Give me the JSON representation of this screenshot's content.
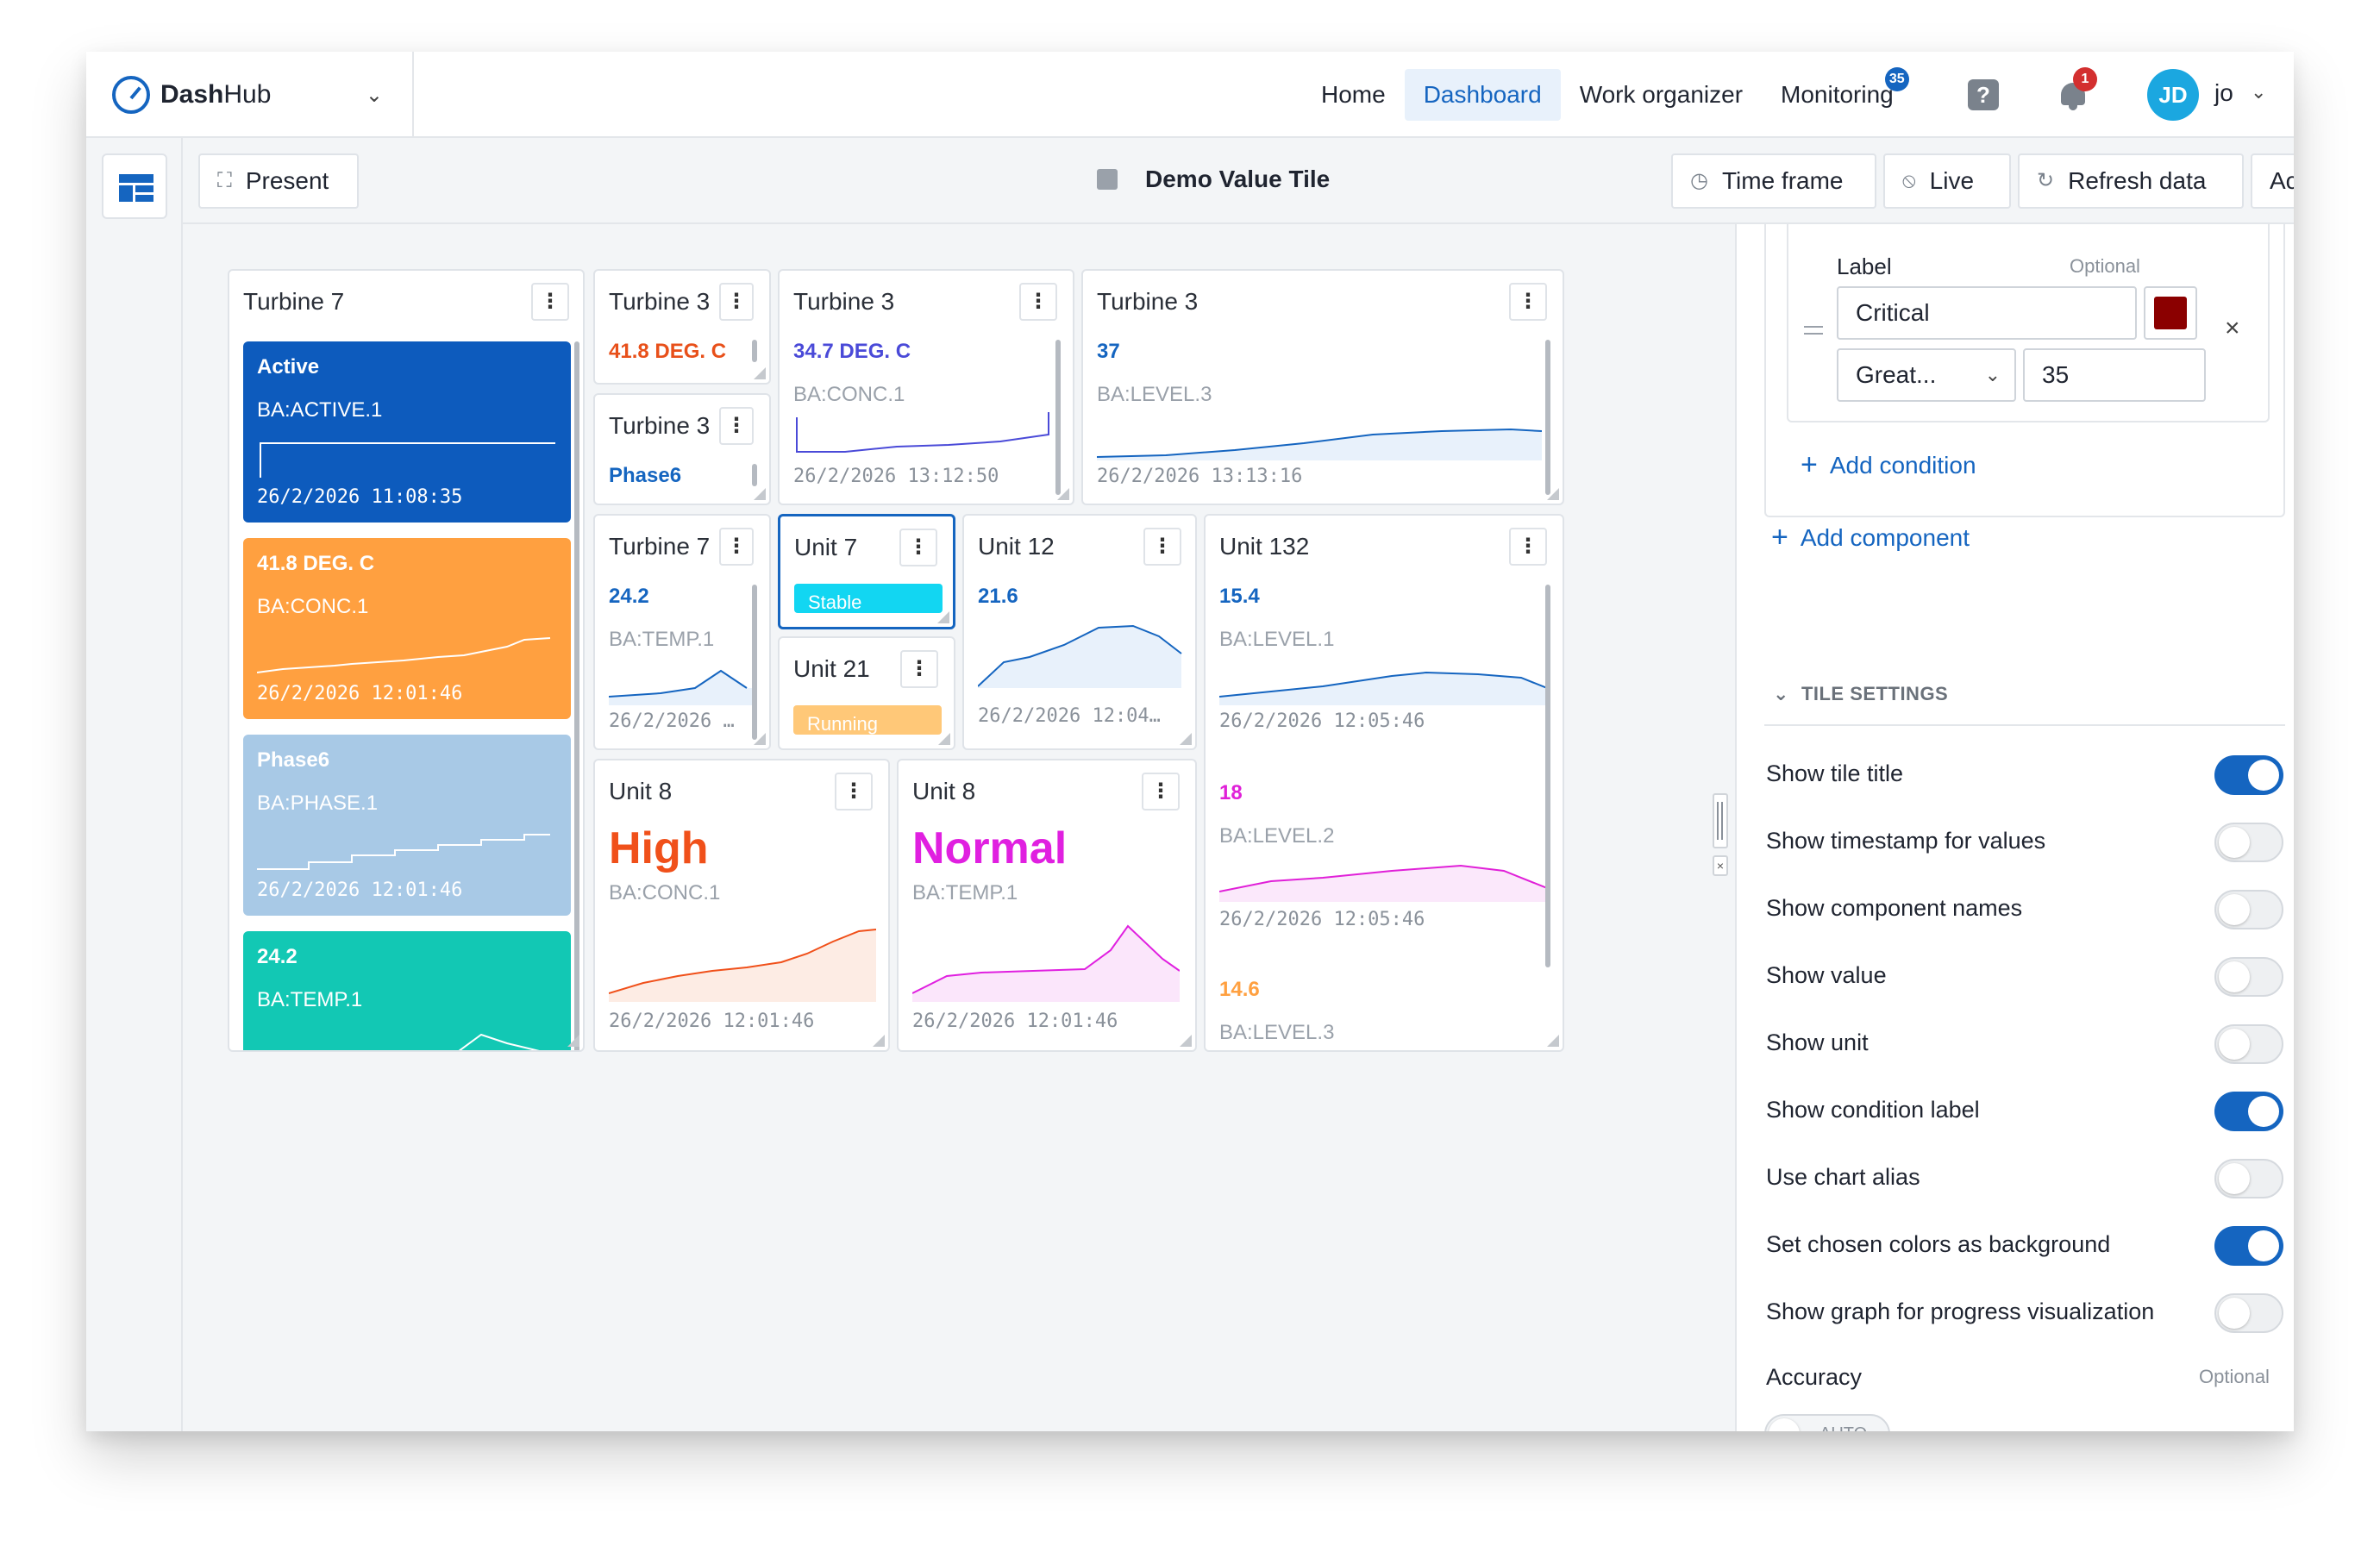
{
  "app": {
    "brand_bold": "Dash",
    "brand_light": "Hub"
  },
  "nav": {
    "items": [
      {
        "label": "Home",
        "active": false
      },
      {
        "label": "Dashboard",
        "active": true
      },
      {
        "label": "Work organizer",
        "active": false
      },
      {
        "label": "Monitoring",
        "active": false,
        "badge": "35"
      }
    ],
    "notifications_badge": "1",
    "user_initials": "JD",
    "user_name": "jo"
  },
  "toolbar": {
    "present_label": "Present",
    "title": "Demo Value Tile",
    "time_frame_label": "Time frame",
    "live_label": "Live",
    "refresh_label": "Refresh data",
    "actions_label": "Actions"
  },
  "tiles": {
    "t7": {
      "title": "Turbine 7",
      "blocks": [
        {
          "value": "Active",
          "tag": "BA:ACTIVE.1",
          "ts": "26/2/2026 11:08:35",
          "color": "#0d5bbd"
        },
        {
          "value": "41.8 DEG. C",
          "tag": "BA:CONC.1",
          "ts": "26/2/2026 12:01:46",
          "color": "#ffa040"
        },
        {
          "value": "Phase6",
          "tag": "BA:PHASE.1",
          "ts": "26/2/2026 12:01:46",
          "color": "#a8c9e6"
        },
        {
          "value": "24.2",
          "tag": "BA:TEMP.1",
          "ts": "",
          "color": "#12c8b4"
        }
      ]
    },
    "t3a": {
      "title": "Turbine 3",
      "value": "41.8 DEG. C",
      "color": "#e8501a"
    },
    "t3b": {
      "title": "Turbine 3",
      "value": "Phase6",
      "color": "#1565c0"
    },
    "t3c": {
      "title": "Turbine 3",
      "value": "34.7 DEG. C",
      "tag": "BA:CONC.1",
      "ts": "26/2/2026 13:12:50",
      "color": "#4a4ad8"
    },
    "t3d": {
      "title": "Turbine 3",
      "value": "37",
      "tag": "BA:LEVEL.3",
      "ts": "26/2/2026 13:13:16",
      "color": "#1565c0"
    },
    "t7b": {
      "title": "Turbine 7",
      "value": "24.2",
      "tag": "BA:TEMP.1",
      "ts": "26/2/2026 …",
      "color": "#1565c0"
    },
    "u7": {
      "title": "Unit 7",
      "pill": "Stable",
      "color": "#12d6f2"
    },
    "u21": {
      "title": "Unit 21",
      "pill": "Running",
      "color": "#ffc878"
    },
    "u12": {
      "title": "Unit 12",
      "value": "21.6",
      "ts": "26/2/2026 12:04…",
      "color": "#1565c0"
    },
    "u132": {
      "title": "Unit 132",
      "rows": [
        {
          "value": "15.4",
          "tag": "BA:LEVEL.1",
          "ts": "26/2/2026 12:05:46",
          "color": "#1565c0"
        },
        {
          "value": "18",
          "tag": "BA:LEVEL.2",
          "ts": "26/2/2026 12:05:46",
          "color": "#e020d8"
        },
        {
          "value": "14.6",
          "tag": "BA:LEVEL.3",
          "ts": "",
          "color": "#ffa040"
        }
      ]
    },
    "u8a": {
      "title": "Unit 8",
      "value": "High",
      "tag": "BA:CONC.1",
      "ts": "26/2/2026 12:01:46",
      "color": "#f0501a"
    },
    "u8b": {
      "title": "Unit 8",
      "value": "Normal",
      "tag": "BA:TEMP.1",
      "ts": "26/2/2026 12:01:46",
      "color": "#e020e0"
    }
  },
  "panel": {
    "label_title": "Label",
    "optional": "Optional",
    "label_value": "Critical",
    "swatch_color": "#8b0000",
    "operator": "Great...",
    "threshold": "35",
    "add_condition": "Add condition",
    "add_component": "Add component",
    "section": "TILE SETTINGS",
    "settings": [
      {
        "label": "Show tile title",
        "on": true
      },
      {
        "label": "Show timestamp for values",
        "on": false
      },
      {
        "label": "Show component names",
        "on": false
      },
      {
        "label": "Show value",
        "on": false
      },
      {
        "label": "Show unit",
        "on": false
      },
      {
        "label": "Show condition label",
        "on": true
      },
      {
        "label": "Use chart alias",
        "on": false
      },
      {
        "label": "Set chosen colors as background",
        "on": true
      },
      {
        "label": "Show graph for progress visualization",
        "on": false
      }
    ],
    "accuracy_label": "Accuracy",
    "accuracy_optional": "Optional",
    "accuracy_value": "AUTO"
  }
}
